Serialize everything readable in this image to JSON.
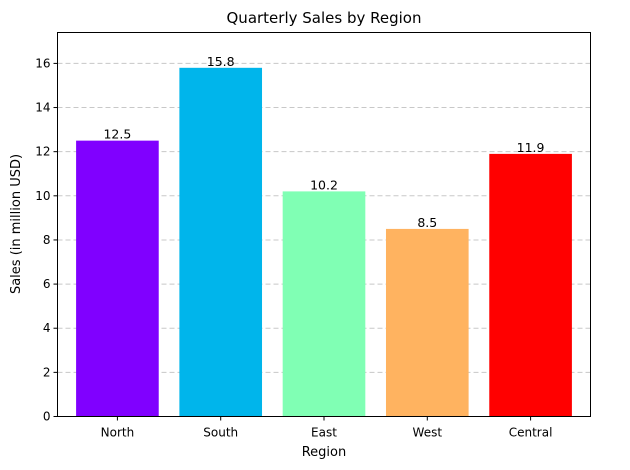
{
  "chart_data": {
    "type": "bar",
    "title": "Quarterly Sales by Region",
    "xlabel": "Region",
    "ylabel": "Sales (in million USD)",
    "categories": [
      "North",
      "South",
      "East",
      "West",
      "Central"
    ],
    "values": [
      12.5,
      15.8,
      10.2,
      8.5,
      11.9
    ],
    "value_labels": [
      "12.5",
      "15.8",
      "10.2",
      "8.5",
      "11.9"
    ],
    "colors": [
      "#8000ff",
      "#00b5eb",
      "#80ffb4",
      "#ffb360",
      "#ff0000"
    ],
    "ylim": [
      0,
      17.4
    ],
    "yticks": [
      0,
      2,
      4,
      6,
      8,
      10,
      12,
      14,
      16
    ],
    "ytick_labels": [
      "0",
      "2",
      "4",
      "6",
      "8",
      "10",
      "12",
      "14",
      "16"
    ],
    "grid": {
      "axis": "y",
      "style": "dashed",
      "color": "#c8c8c8"
    }
  }
}
